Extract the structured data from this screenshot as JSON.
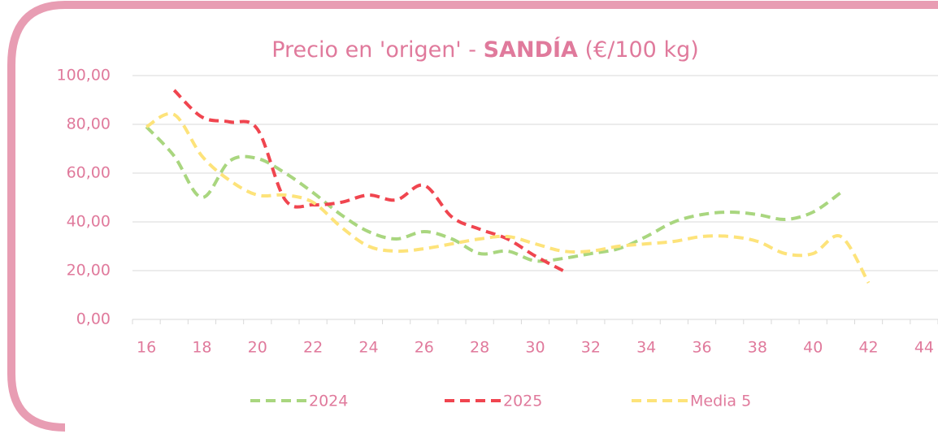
{
  "chart_data": {
    "type": "line",
    "title": [
      "Precio en 'origen' - ",
      "SANDÍA",
      " (€/100 kg)"
    ],
    "x": [
      16,
      17,
      18,
      19,
      20,
      21,
      22,
      23,
      24,
      25,
      26,
      27,
      28,
      29,
      30,
      31,
      32,
      33,
      34,
      35,
      36,
      37,
      38,
      39,
      40,
      41,
      42
    ],
    "xlim": [
      15.5,
      44.5
    ],
    "xticks": [
      16,
      18,
      20,
      22,
      24,
      26,
      28,
      30,
      32,
      34,
      36,
      38,
      40,
      42,
      44
    ],
    "ylim": [
      0,
      100
    ],
    "yticks": [
      {
        "value": 0,
        "label": "0,00"
      },
      {
        "value": 20,
        "label": "20,00"
      },
      {
        "value": 40,
        "label": "40,00"
      },
      {
        "value": 60,
        "label": "60,00"
      },
      {
        "value": 80,
        "label": "80,00"
      },
      {
        "value": 100,
        "label": "100,00"
      }
    ],
    "grid": true,
    "legend": "bottom",
    "series": [
      {
        "name": "2024",
        "color": "#a9d67f",
        "values": [
          79,
          67,
          50,
          65,
          66,
          60,
          52,
          43,
          36,
          33,
          36,
          33,
          27,
          28,
          24,
          25,
          27,
          29,
          34,
          40,
          43,
          44,
          43,
          41,
          44,
          52,
          null
        ]
      },
      {
        "name": "2025",
        "color": "#f0454f",
        "values": [
          null,
          94,
          83,
          81,
          78,
          49,
          47,
          48,
          51,
          49,
          55,
          42,
          37,
          33,
          26,
          20,
          null,
          null,
          null,
          null,
          null,
          null,
          null,
          null,
          null,
          null,
          null
        ]
      },
      {
        "name": "Media 5",
        "color": "#fde37a",
        "values": [
          79,
          84,
          67,
          57,
          51,
          51,
          48,
          38,
          30,
          28,
          29,
          31,
          33,
          34,
          31,
          28,
          28,
          30,
          31,
          32,
          34,
          34,
          32,
          27,
          27,
          34,
          15
        ]
      }
    ]
  }
}
